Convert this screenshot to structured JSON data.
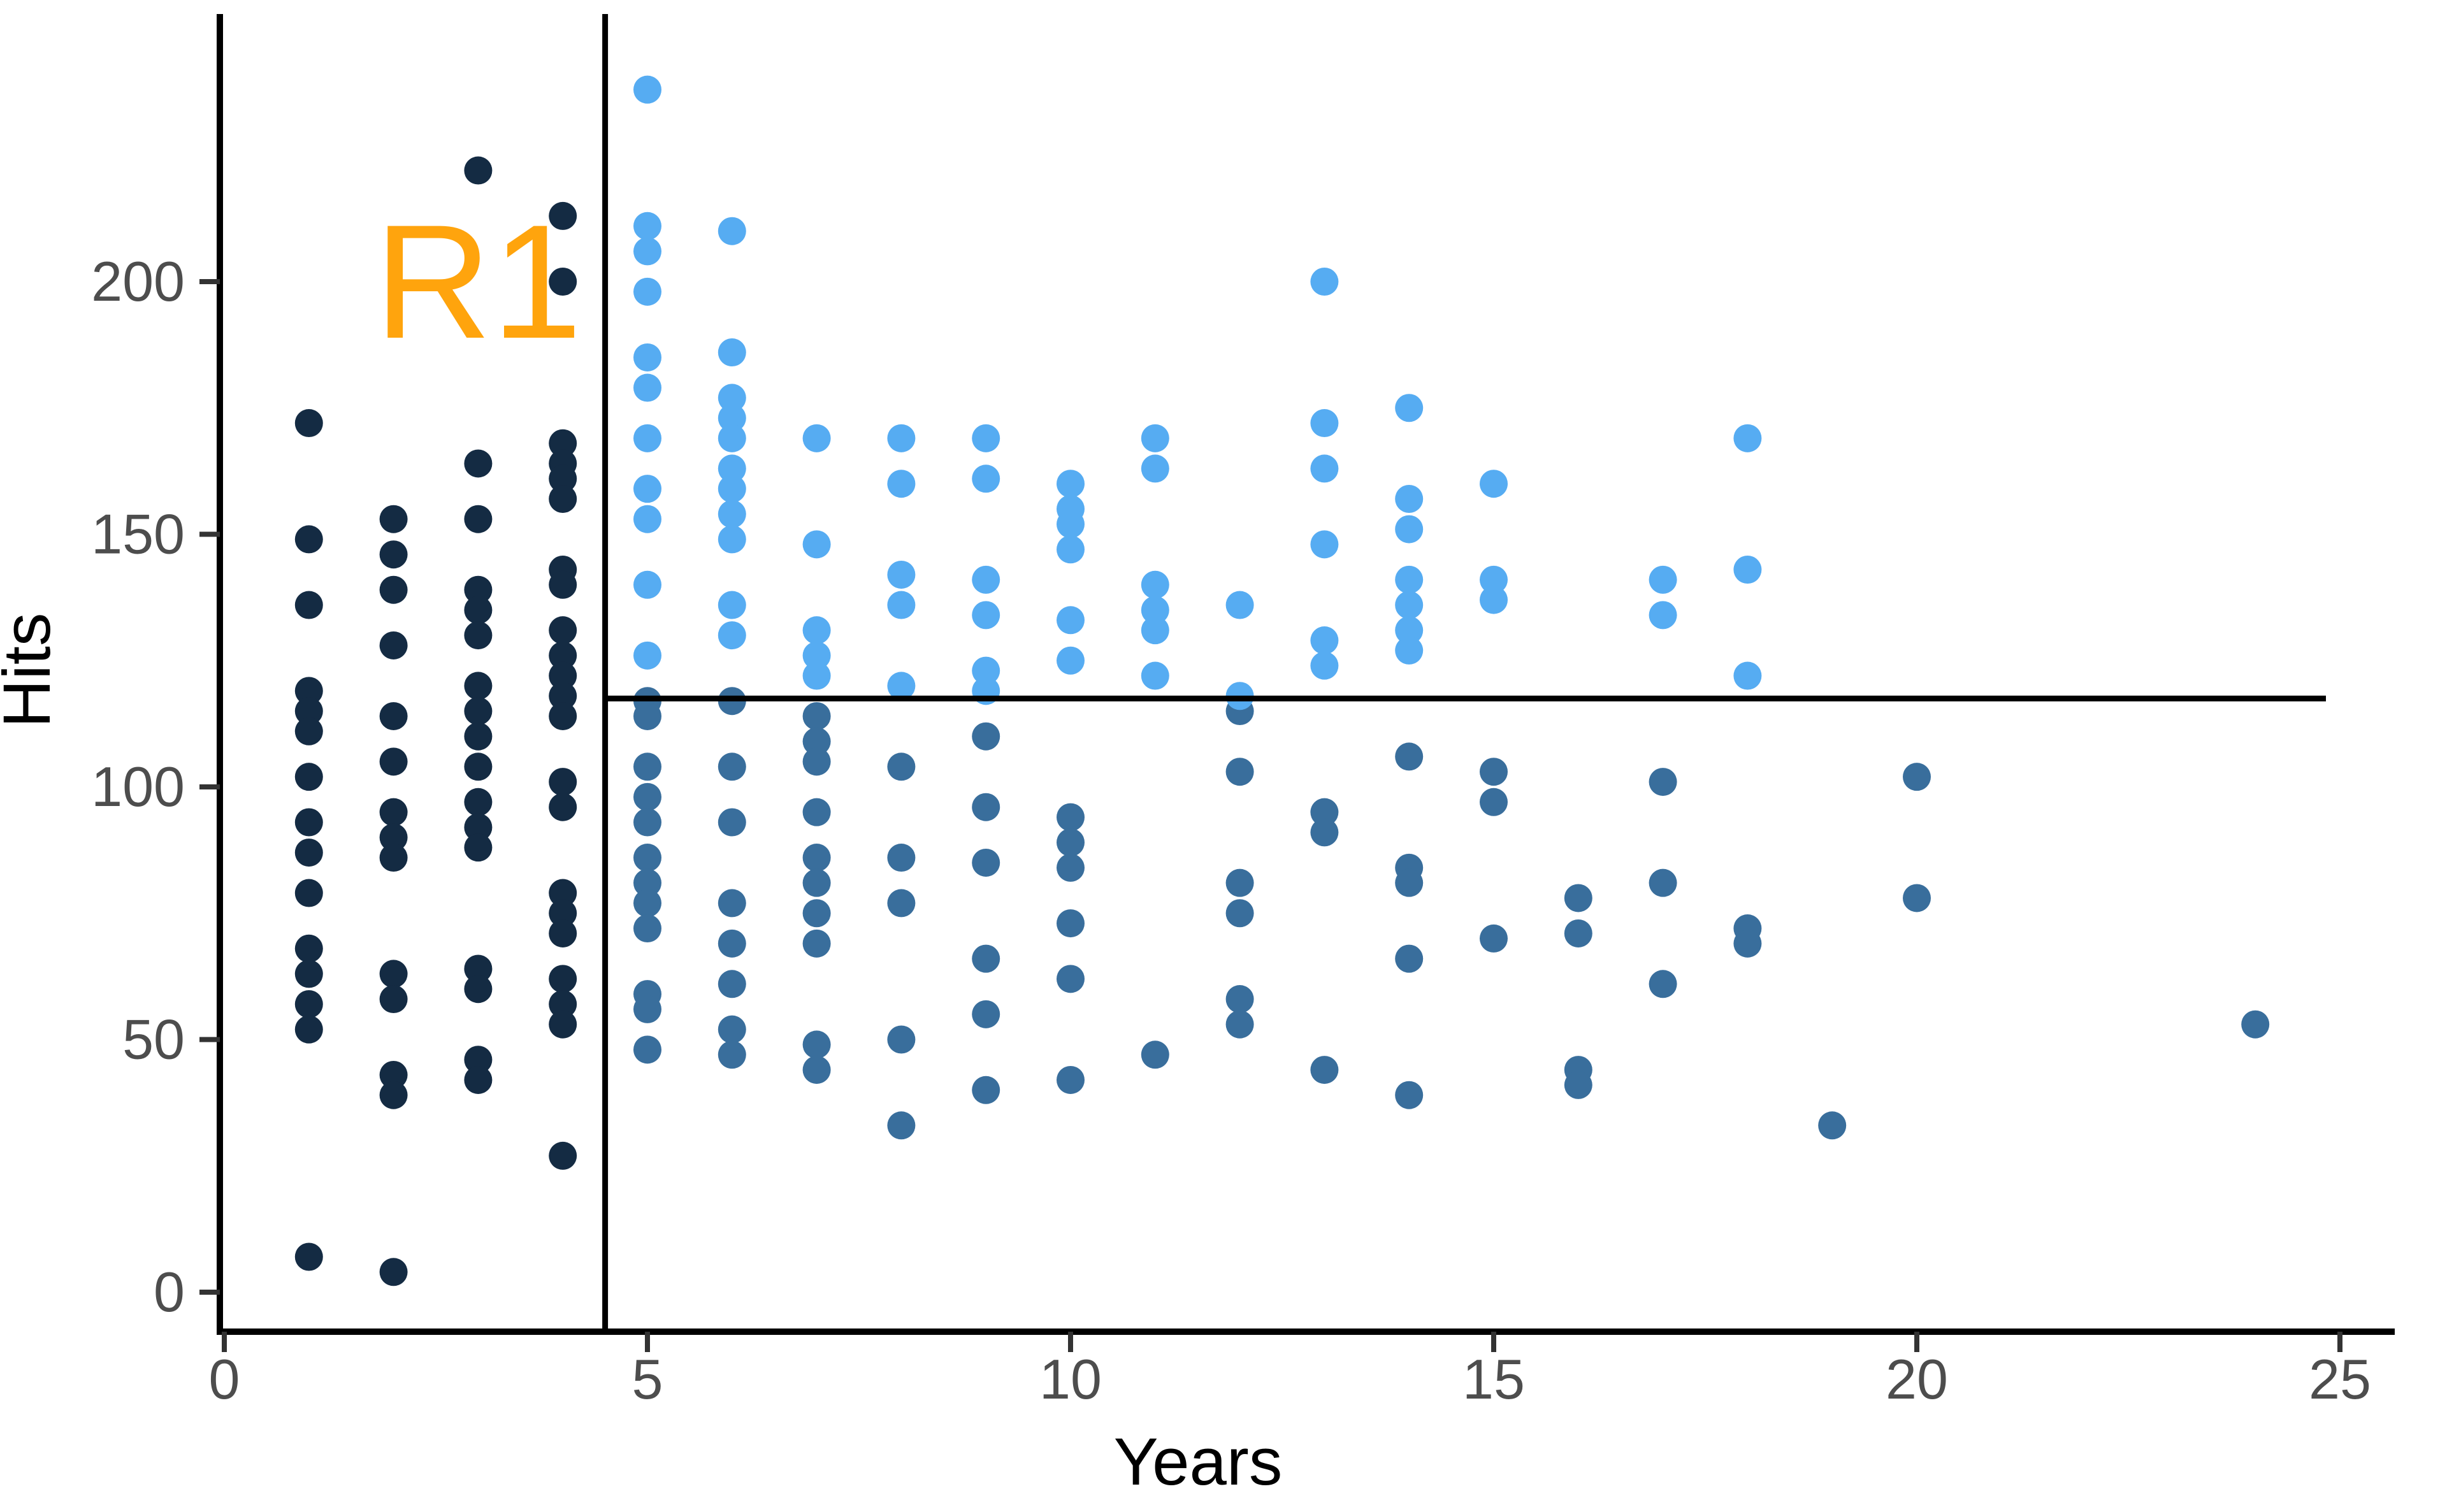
{
  "chart_data": {
    "type": "scatter",
    "xlabel": "Years",
    "ylabel": "Hits",
    "x_ticks": [
      0,
      5,
      10,
      15,
      20,
      25
    ],
    "y_ticks": [
      0,
      50,
      100,
      150,
      200
    ],
    "xlim": [
      -0.6,
      25.8
    ],
    "ylim": [
      -8,
      252
    ],
    "grid": "off",
    "legend": "none",
    "split_lines": {
      "v_split_years": 4.5,
      "h_split_hits": 117.5
    },
    "annotation": {
      "label": "R1",
      "years": 3.0,
      "hits": 200,
      "color": "#FFA40D"
    },
    "colors": {
      "region_r1": "#142B43",
      "region_r2": "#396E9C",
      "region_r3": "#56ACF2",
      "axis_text": "#4D4D4D",
      "axis_line": "#000000",
      "tick_mark": "#333333"
    },
    "series": [
      {
        "region": "R1",
        "color_key": "region_r1",
        "points": [
          [
            1,
            172
          ],
          [
            1,
            149
          ],
          [
            1,
            136
          ],
          [
            1,
            119
          ],
          [
            1,
            115
          ],
          [
            1,
            111
          ],
          [
            1,
            102
          ],
          [
            1,
            93
          ],
          [
            1,
            87
          ],
          [
            1,
            79
          ],
          [
            1,
            68
          ],
          [
            1,
            63
          ],
          [
            1,
            57
          ],
          [
            1,
            52
          ],
          [
            1,
            7
          ],
          [
            2,
            153
          ],
          [
            2,
            146
          ],
          [
            2,
            139
          ],
          [
            2,
            128
          ],
          [
            2,
            114
          ],
          [
            2,
            105
          ],
          [
            2,
            95
          ],
          [
            2,
            90
          ],
          [
            2,
            86
          ],
          [
            2,
            63
          ],
          [
            2,
            58
          ],
          [
            2,
            43
          ],
          [
            2,
            39
          ],
          [
            2,
            4
          ],
          [
            3,
            222
          ],
          [
            3,
            164
          ],
          [
            3,
            153
          ],
          [
            3,
            139
          ],
          [
            3,
            135
          ],
          [
            3,
            130
          ],
          [
            3,
            120
          ],
          [
            3,
            115
          ],
          [
            3,
            110
          ],
          [
            3,
            104
          ],
          [
            3,
            97
          ],
          [
            3,
            92
          ],
          [
            3,
            88
          ],
          [
            3,
            64
          ],
          [
            3,
            60
          ],
          [
            3,
            46
          ],
          [
            3,
            42
          ],
          [
            4,
            213
          ],
          [
            4,
            200
          ],
          [
            4,
            168
          ],
          [
            4,
            164
          ],
          [
            4,
            161
          ],
          [
            4,
            157
          ],
          [
            4,
            143
          ],
          [
            4,
            140
          ],
          [
            4,
            131
          ],
          [
            4,
            126
          ],
          [
            4,
            122
          ],
          [
            4,
            118
          ],
          [
            4,
            114
          ],
          [
            4,
            101
          ],
          [
            4,
            96
          ],
          [
            4,
            79
          ],
          [
            4,
            75
          ],
          [
            4,
            71
          ],
          [
            4,
            62
          ],
          [
            4,
            57
          ],
          [
            4,
            53
          ],
          [
            4,
            27
          ]
        ]
      },
      {
        "region": "R2",
        "color_key": "region_r2",
        "points": [
          [
            5,
            117
          ],
          [
            5,
            114
          ],
          [
            5,
            104
          ],
          [
            5,
            98
          ],
          [
            5,
            93
          ],
          [
            5,
            86
          ],
          [
            5,
            81
          ],
          [
            5,
            77
          ],
          [
            5,
            72
          ],
          [
            5,
            59
          ],
          [
            5,
            56
          ],
          [
            5,
            48
          ],
          [
            6,
            117
          ],
          [
            6,
            104
          ],
          [
            6,
            93
          ],
          [
            6,
            77
          ],
          [
            6,
            69
          ],
          [
            6,
            61
          ],
          [
            6,
            52
          ],
          [
            6,
            47
          ],
          [
            7,
            114
          ],
          [
            7,
            109
          ],
          [
            7,
            105
          ],
          [
            7,
            95
          ],
          [
            7,
            86
          ],
          [
            7,
            81
          ],
          [
            7,
            75
          ],
          [
            7,
            69
          ],
          [
            7,
            49
          ],
          [
            7,
            44
          ],
          [
            8,
            104
          ],
          [
            8,
            86
          ],
          [
            8,
            77
          ],
          [
            8,
            50
          ],
          [
            8,
            33
          ],
          [
            9,
            110
          ],
          [
            9,
            96
          ],
          [
            9,
            85
          ],
          [
            9,
            66
          ],
          [
            9,
            55
          ],
          [
            9,
            40
          ],
          [
            10,
            94
          ],
          [
            10,
            89
          ],
          [
            10,
            84
          ],
          [
            10,
            73
          ],
          [
            10,
            62
          ],
          [
            10,
            42
          ],
          [
            11,
            47
          ],
          [
            12,
            115
          ],
          [
            12,
            103
          ],
          [
            12,
            81
          ],
          [
            12,
            75
          ],
          [
            12,
            58
          ],
          [
            12,
            53
          ],
          [
            13,
            95
          ],
          [
            13,
            91
          ],
          [
            13,
            44
          ],
          [
            14,
            106
          ],
          [
            14,
            84
          ],
          [
            14,
            81
          ],
          [
            14,
            66
          ],
          [
            14,
            39
          ],
          [
            15,
            103
          ],
          [
            15,
            97
          ],
          [
            15,
            70
          ],
          [
            16,
            78
          ],
          [
            16,
            71
          ],
          [
            16,
            44
          ],
          [
            16,
            41
          ],
          [
            17,
            101
          ],
          [
            17,
            81
          ],
          [
            17,
            61
          ],
          [
            18,
            72
          ],
          [
            18,
            69
          ],
          [
            19,
            33
          ],
          [
            20,
            102
          ],
          [
            20,
            78
          ],
          [
            24,
            53
          ]
        ]
      },
      {
        "region": "R3",
        "color_key": "region_r3",
        "points": [
          [
            5,
            238
          ],
          [
            5,
            211
          ],
          [
            5,
            206
          ],
          [
            5,
            198
          ],
          [
            5,
            185
          ],
          [
            5,
            179
          ],
          [
            5,
            169
          ],
          [
            5,
            159
          ],
          [
            5,
            153
          ],
          [
            5,
            140
          ],
          [
            5,
            126
          ],
          [
            6,
            210
          ],
          [
            6,
            186
          ],
          [
            6,
            177
          ],
          [
            6,
            173
          ],
          [
            6,
            169
          ],
          [
            6,
            163
          ],
          [
            6,
            159
          ],
          [
            6,
            154
          ],
          [
            6,
            149
          ],
          [
            6,
            136
          ],
          [
            6,
            130
          ],
          [
            7,
            169
          ],
          [
            7,
            148
          ],
          [
            7,
            131
          ],
          [
            7,
            126
          ],
          [
            7,
            122
          ],
          [
            8,
            169
          ],
          [
            8,
            160
          ],
          [
            8,
            142
          ],
          [
            8,
            136
          ],
          [
            8,
            120
          ],
          [
            9,
            169
          ],
          [
            9,
            161
          ],
          [
            9,
            141
          ],
          [
            9,
            134
          ],
          [
            9,
            123
          ],
          [
            9,
            119
          ],
          [
            10,
            160
          ],
          [
            10,
            155
          ],
          [
            10,
            152
          ],
          [
            10,
            147
          ],
          [
            10,
            133
          ],
          [
            10,
            125
          ],
          [
            11,
            169
          ],
          [
            11,
            163
          ],
          [
            11,
            140
          ],
          [
            11,
            135
          ],
          [
            11,
            131
          ],
          [
            11,
            122
          ],
          [
            12,
            136
          ],
          [
            12,
            118
          ],
          [
            13,
            200
          ],
          [
            13,
            172
          ],
          [
            13,
            163
          ],
          [
            13,
            148
          ],
          [
            13,
            129
          ],
          [
            13,
            124
          ],
          [
            14,
            175
          ],
          [
            14,
            157
          ],
          [
            14,
            151
          ],
          [
            14,
            141
          ],
          [
            14,
            136
          ],
          [
            14,
            131
          ],
          [
            14,
            127
          ],
          [
            15,
            160
          ],
          [
            15,
            141
          ],
          [
            15,
            137
          ],
          [
            17,
            141
          ],
          [
            17,
            134
          ],
          [
            18,
            169
          ],
          [
            18,
            143
          ],
          [
            18,
            122
          ]
        ]
      }
    ]
  }
}
